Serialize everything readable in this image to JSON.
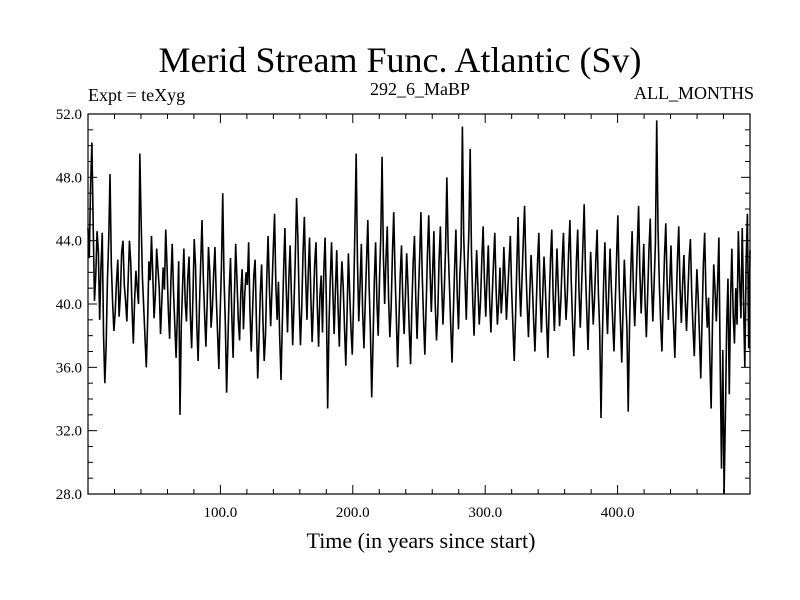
{
  "header": {
    "title": "Merid Stream Func. Atlantic (Sv)",
    "experiment": "Expt = teXyg",
    "run": "292_6_MaBP",
    "period": "ALL_MONTHS"
  },
  "chart_data": {
    "type": "line",
    "title": "Merid Stream Func. Atlantic (Sv)",
    "xlabel": "Time (in years since start)",
    "ylabel": "",
    "xlim": [
      0,
      500
    ],
    "ylim": [
      28.0,
      52.0
    ],
    "xticks": [
      100.0,
      200.0,
      300.0,
      400.0
    ],
    "xtick_labels": [
      "100.0",
      "200.0",
      "300.0",
      "400.0"
    ],
    "yticks": [
      28.0,
      32.0,
      36.0,
      40.0,
      44.0,
      48.0,
      52.0
    ],
    "ytick_labels": [
      "28.0",
      "32.0",
      "36.0",
      "40.0",
      "44.0",
      "48.0",
      "52.0"
    ],
    "grid": false,
    "line_color": "#000000",
    "series": [
      {
        "values": [
          44.8,
          42.9,
          47.5,
          50.2,
          45.0,
          40.2,
          41.8,
          44.6,
          43.3,
          39.0,
          42.3,
          44.5,
          38.0,
          35.0,
          37.3,
          41.5,
          44.1,
          48.2,
          42.5,
          40.1,
          38.3,
          39.5,
          41.4,
          42.8,
          39.2,
          40.6,
          43.3,
          44.0,
          41.2,
          40.2,
          38.9,
          41.5,
          44.0,
          42.6,
          39.7,
          37.5,
          40.3,
          42.1,
          41.0,
          40.0,
          49.5,
          45.3,
          41.7,
          39.8,
          37.9,
          36.0,
          38.8,
          42.7,
          41.5,
          44.3,
          41.9,
          39.1,
          40.6,
          43.5,
          42.2,
          41.0,
          38.1,
          40.2,
          42.3,
          40.9,
          44.7,
          42.4,
          39.6,
          37.8,
          41.5,
          43.8,
          40.8,
          38.7,
          36.6,
          39.4,
          42.7,
          33.0,
          38.6,
          41.1,
          43.5,
          40.2,
          38.9,
          41.6,
          43.0,
          39.3,
          37.2,
          40.5,
          44.1,
          42.4,
          38.6,
          36.4,
          39.8,
          42.6,
          45.3,
          41.7,
          39.4,
          37.3,
          40.1,
          43.6,
          42.0,
          38.5,
          39.8,
          41.9,
          43.6,
          40.5,
          38.2,
          35.9,
          39.4,
          42.3,
          47.0,
          41.6,
          38.8,
          34.4,
          37.6,
          40.9,
          42.9,
          39.3,
          36.6,
          40.4,
          43.8,
          41.5,
          39.0,
          37.7,
          40.8,
          42.2,
          38.4,
          40.6,
          42.0,
          41.2,
          43.9,
          39.6,
          37.0,
          39.5,
          41.8,
          42.8,
          38.9,
          35.3,
          37.7,
          40.7,
          42.5,
          39.1,
          36.4,
          38.0,
          41.6,
          44.3,
          41.1,
          38.6,
          40.9,
          43.4,
          45.7,
          41.2,
          39.0,
          41.4,
          37.8,
          35.2,
          38.8,
          42.1,
          44.8,
          41.0,
          38.2,
          41.5,
          43.7,
          40.6,
          37.4,
          39.9,
          42.9,
          46.7,
          44.2,
          40.1,
          37.4,
          39.8,
          43.3,
          45.5,
          41.8,
          39.0,
          41.9,
          44.2,
          40.5,
          37.6,
          40.0,
          42.6,
          43.9,
          39.9,
          37.3,
          40.5,
          41.8,
          38.2,
          42.0,
          44.2,
          40.1,
          33.4,
          38.6,
          41.5,
          43.9,
          40.8,
          38.1,
          40.9,
          43.4,
          39.8,
          37.3,
          40.6,
          42.7,
          41.1,
          38.5,
          36.1,
          39.4,
          43.2,
          40.7,
          38.4,
          36.8,
          40.2,
          44.6,
          49.5,
          42.7,
          38.9,
          41.2,
          43.8,
          39.5,
          37.2,
          40.1,
          42.7,
          45.3,
          41.1,
          38.3,
          34.1,
          37.5,
          41.4,
          43.9,
          40.2,
          38.0,
          41.5,
          44.3,
          49.3,
          43.1,
          40.0,
          42.8,
          44.9,
          40.4,
          37.9,
          39.8,
          43.2,
          45.8,
          42.0,
          39.2,
          36.0,
          38.9,
          41.8,
          43.7,
          40.2,
          38.1,
          40.5,
          43.2,
          41.1,
          38.3,
          36.2,
          39.9,
          42.6,
          44.3,
          40.4,
          37.8,
          40.4,
          42.9,
          45.8,
          41.8,
          39.1,
          36.8,
          39.8,
          43.1,
          45.6,
          42.2,
          39.5,
          41.9,
          44.6,
          40.1,
          37.7,
          39.4,
          42.8,
          44.9,
          41.3,
          38.7,
          40.8,
          43.5,
          48.0,
          43.6,
          41.2,
          38.6,
          36.3,
          39.4,
          42.3,
          44.7,
          40.6,
          38.4,
          41.7,
          43.6,
          51.2,
          44.3,
          41.6,
          39.0,
          42.1,
          44.6,
          49.8,
          43.3,
          40.2,
          38.0,
          40.9,
          43.4,
          41.0,
          38.7,
          40.2,
          42.8,
          44.9,
          41.5,
          39.2,
          41.6,
          43.7,
          40.3,
          38.2,
          40.5,
          42.6,
          44.5,
          41.0,
          38.7,
          40.1,
          42.3,
          39.4,
          40.8,
          43.6,
          41.5,
          39.0,
          40.8,
          42.6,
          44.3,
          40.9,
          38.6,
          36.4,
          39.1,
          42.4,
          45.5,
          41.6,
          39.2,
          41.5,
          44.0,
          46.2,
          42.4,
          39.9,
          37.9,
          40.7,
          43.1,
          41.2,
          38.9,
          37.0,
          39.8,
          42.6,
          44.5,
          40.5,
          38.2,
          40.6,
          43.0,
          41.1,
          38.8,
          36.6,
          40.0,
          42.8,
          44.7,
          40.6,
          38.3,
          40.9,
          43.5,
          41.0,
          38.6,
          40.2,
          42.6,
          44.5,
          41.2,
          39.0,
          40.6,
          43.3,
          45.3,
          41.5,
          38.9,
          36.7,
          39.4,
          42.7,
          44.7,
          40.8,
          38.5,
          41.1,
          43.7,
          46.3,
          42.1,
          39.5,
          37.1,
          40.3,
          43.3,
          41.0,
          38.7,
          40.4,
          42.8,
          44.7,
          40.6,
          38.3,
          32.8,
          37.7,
          41.3,
          43.9,
          40.3,
          38.1,
          40.9,
          43.5,
          41.0,
          38.9,
          37.0,
          40.0,
          42.9,
          45.6,
          41.2,
          38.8,
          36.3,
          39.7,
          42.8,
          40.6,
          38.4,
          33.2,
          38.6,
          42.1,
          44.6,
          40.8,
          38.6,
          40.9,
          43.6,
          46.2,
          42.0,
          39.4,
          41.5,
          43.8,
          40.1,
          37.9,
          40.6,
          43.4,
          45.4,
          41.4,
          38.9,
          41.3,
          43.9,
          51.6,
          44.8,
          41.3,
          38.9,
          37.0,
          40.2,
          43.0,
          45.1,
          41.4,
          39.0,
          41.2,
          43.7,
          40.6,
          38.7,
          36.6,
          39.9,
          42.8,
          44.9,
          41.0,
          38.8,
          41.3,
          43.1,
          40.2,
          38.3,
          40.5,
          42.8,
          44.1,
          40.7,
          38.5,
          36.7,
          39.6,
          42.2,
          40.4,
          38.0,
          35.3,
          39.0,
          42.5,
          44.5,
          40.6,
          38.5,
          40.4,
          36.6,
          33.4,
          38.6,
          42.5,
          40.9,
          38.9,
          41.3,
          44.2,
          36.2,
          29.6,
          37.1,
          27.6,
          33.0,
          38.6,
          41.6,
          34.3,
          40.2,
          43.5,
          39.4,
          37.5,
          41.0,
          38.7,
          44.6,
          41.5,
          39.1,
          44.8,
          40.2,
          36.0,
          42.6,
          45.7,
          37.2,
          43.4
        ]
      }
    ]
  }
}
